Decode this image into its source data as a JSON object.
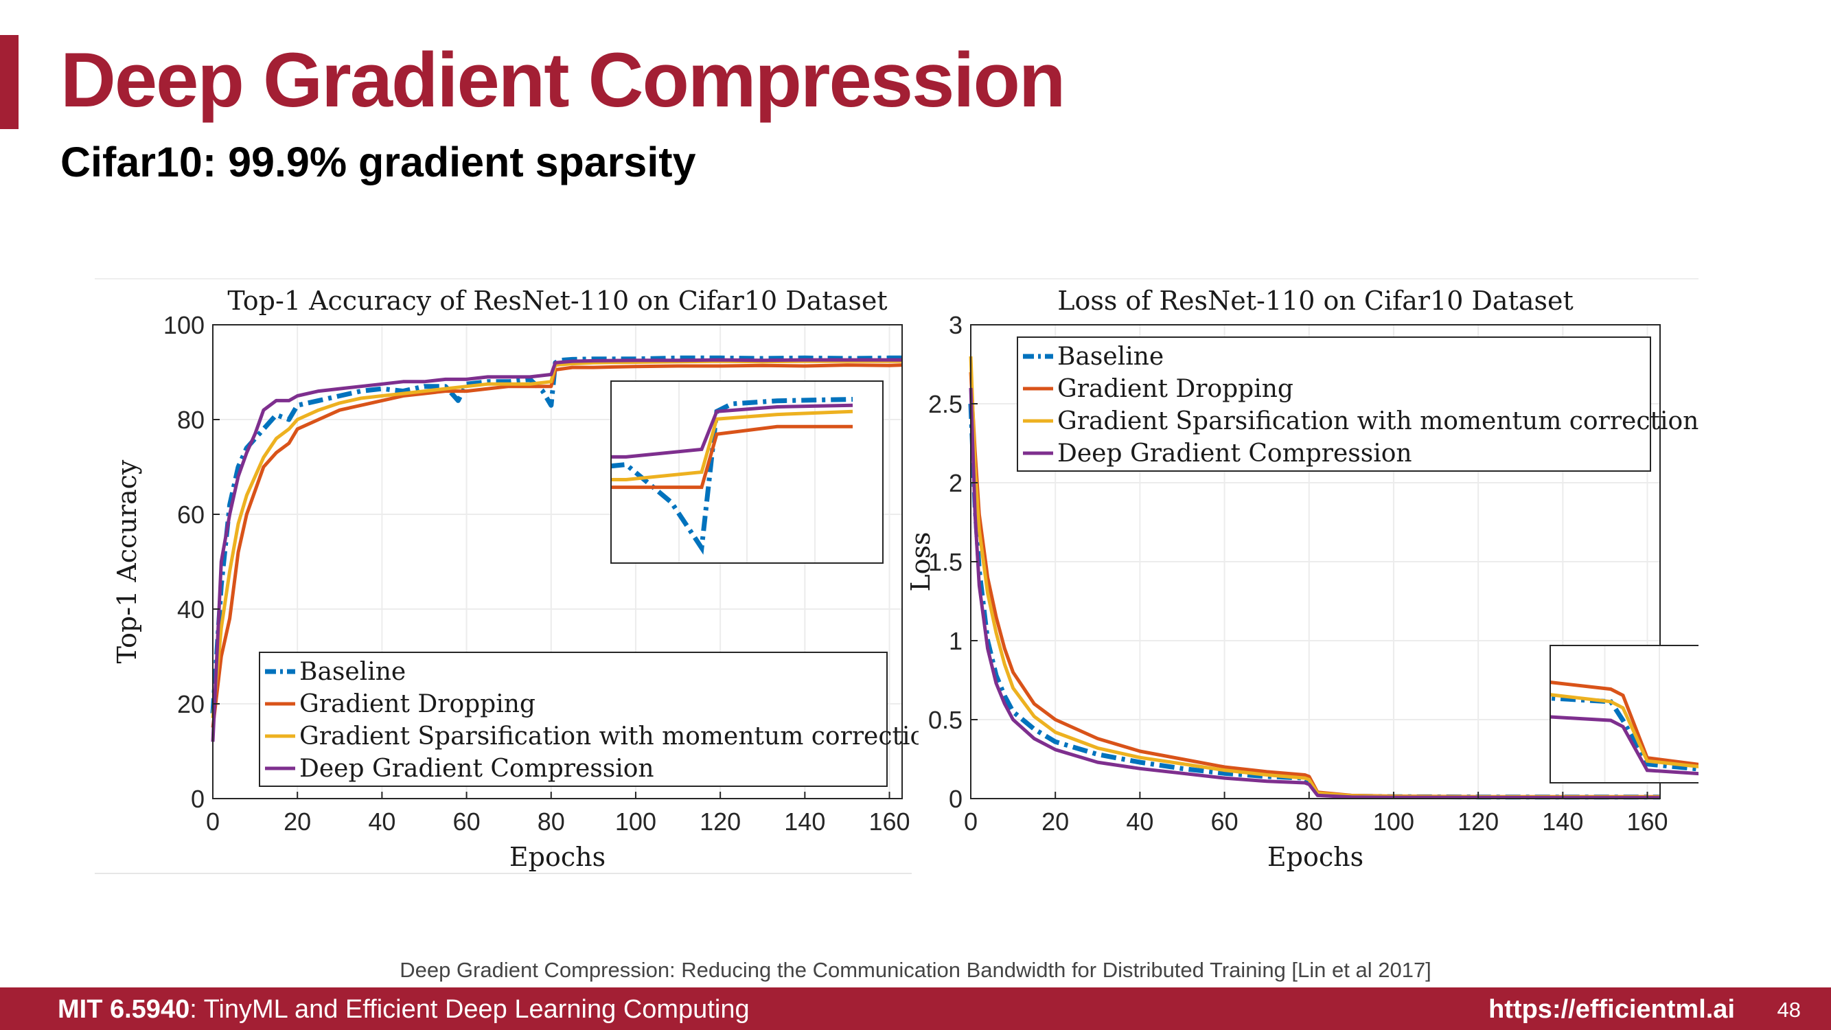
{
  "slide": {
    "title": "Deep Gradient Compression",
    "subtitle": "Cifar10: 99.9% gradient sparsity",
    "citation": "Deep Gradient Compression: Reducing the Communication Bandwidth for Distributed Training [Lin et al 2017]",
    "footer_course_code": "MIT 6.5940",
    "footer_course_name": ": TinyML and Efficient Deep Learning Computing",
    "footer_url": "https://efficientml.ai",
    "page_number": "48"
  },
  "colors": {
    "accent": "#a31f34",
    "baseline": "#0072bd",
    "gradient_dropping": "#d95319",
    "gradient_sparsification": "#edb120",
    "deep_gradient_compression": "#7e2f8e"
  },
  "chart_data": [
    {
      "type": "line",
      "title": "Top-1 Accuracy of ResNet-110 on Cifar10 Dataset",
      "xlabel": "Epochs",
      "ylabel": "Top-1 Accuracy",
      "xlim": [
        0,
        163
      ],
      "ylim": [
        0,
        100
      ],
      "xticks": [
        "0",
        "20",
        "40",
        "60",
        "80",
        "100",
        "120",
        "140",
        "160"
      ],
      "yticks": [
        "0",
        "20",
        "40",
        "60",
        "80",
        "100"
      ],
      "grid": true,
      "legend_position": "bottom-center",
      "inset": "zoom of curves around epoch 80 (upper right)",
      "series": [
        {
          "name": "Baseline",
          "style": "dash-dot",
          "x": [
            0,
            2,
            4,
            6,
            8,
            10,
            12,
            15,
            18,
            20,
            25,
            30,
            35,
            40,
            45,
            50,
            55,
            58,
            60,
            65,
            70,
            75,
            78,
            80,
            81,
            82,
            85,
            90,
            100,
            110,
            120,
            130,
            140,
            150,
            160,
            163
          ],
          "y": [
            18,
            45,
            62,
            70,
            74,
            76,
            78,
            81,
            80,
            83,
            84,
            85,
            86,
            86.5,
            86,
            87,
            87,
            84,
            87.5,
            88,
            88,
            88.5,
            86,
            83,
            92,
            92.5,
            92.7,
            92.8,
            92.8,
            93,
            93,
            92.9,
            93,
            92.9,
            93,
            93
          ]
        },
        {
          "name": "Gradient Dropping",
          "style": "solid",
          "x": [
            0,
            2,
            4,
            6,
            8,
            10,
            12,
            15,
            18,
            20,
            25,
            30,
            35,
            40,
            45,
            50,
            55,
            60,
            65,
            70,
            75,
            80,
            81,
            85,
            90,
            100,
            110,
            120,
            130,
            140,
            150,
            160,
            163
          ],
          "y": [
            15,
            30,
            38,
            52,
            60,
            65,
            70,
            73,
            75,
            78,
            80,
            82,
            83,
            84,
            85,
            85.5,
            86,
            86,
            86.5,
            87,
            87,
            87,
            90.5,
            91,
            91,
            91.2,
            91.3,
            91.3,
            91.4,
            91.3,
            91.5,
            91.4,
            91.5
          ]
        },
        {
          "name": "Gradient Sparsification with momentum correction",
          "style": "solid",
          "x": [
            0,
            2,
            4,
            6,
            8,
            10,
            12,
            15,
            18,
            20,
            25,
            30,
            35,
            40,
            45,
            50,
            55,
            60,
            65,
            70,
            75,
            80,
            81,
            85,
            90,
            100,
            110,
            120,
            130,
            140,
            150,
            160,
            163
          ],
          "y": [
            17,
            36,
            48,
            58,
            64,
            68,
            72,
            76,
            78,
            80,
            82,
            83.5,
            84.5,
            85,
            85.5,
            86,
            86.5,
            87,
            87.5,
            87.5,
            87.5,
            88,
            91.5,
            91.8,
            92,
            92.1,
            92.2,
            92.3,
            92.2,
            92.3,
            92.3,
            92.3,
            92.3
          ]
        },
        {
          "name": "Deep Gradient Compression",
          "style": "solid",
          "x": [
            0,
            2,
            4,
            6,
            8,
            10,
            12,
            15,
            18,
            20,
            25,
            30,
            35,
            40,
            45,
            50,
            55,
            60,
            65,
            70,
            75,
            80,
            81,
            85,
            90,
            100,
            110,
            120,
            130,
            140,
            150,
            160,
            163
          ],
          "y": [
            12,
            50,
            60,
            68,
            73,
            77,
            82,
            84,
            84,
            85,
            86,
            86.5,
            87,
            87.5,
            88,
            88,
            88.5,
            88.5,
            89,
            89,
            89,
            89.5,
            92,
            92.3,
            92.4,
            92.5,
            92.5,
            92.6,
            92.5,
            92.6,
            92.6,
            92.6,
            92.6
          ]
        }
      ]
    },
    {
      "type": "line",
      "title": "Loss of ResNet-110 on Cifar10 Dataset",
      "xlabel": "Epochs",
      "ylabel": "Loss",
      "xlim": [
        0,
        163
      ],
      "ylim": [
        0,
        3
      ],
      "xticks": [
        "0",
        "20",
        "40",
        "60",
        "80",
        "100",
        "120",
        "140",
        "160"
      ],
      "yticks": [
        "0",
        "0.5",
        "1",
        "1.5",
        "2",
        "2.5",
        "3"
      ],
      "grid": true,
      "legend_position": "top-right",
      "inset": "zoom of curves around epoch 80 (lower right)",
      "series": [
        {
          "name": "Baseline",
          "style": "dash-dot",
          "x": [
            0,
            1,
            2,
            4,
            6,
            8,
            10,
            15,
            20,
            30,
            40,
            50,
            60,
            70,
            79,
            80,
            82,
            90,
            100,
            120,
            140,
            160,
            163
          ],
          "y": [
            2.5,
            1.85,
            1.45,
            1.0,
            0.78,
            0.65,
            0.55,
            0.44,
            0.36,
            0.28,
            0.23,
            0.19,
            0.16,
            0.14,
            0.13,
            0.1,
            0.03,
            0.015,
            0.012,
            0.01,
            0.01,
            0.01,
            0.01
          ]
        },
        {
          "name": "Gradient Dropping",
          "style": "solid",
          "x": [
            0,
            1,
            2,
            4,
            6,
            8,
            10,
            15,
            20,
            30,
            40,
            50,
            60,
            70,
            79,
            80,
            82,
            90,
            100,
            120,
            140,
            160,
            163
          ],
          "y": [
            2.7,
            2.2,
            1.8,
            1.4,
            1.15,
            0.95,
            0.8,
            0.6,
            0.5,
            0.38,
            0.3,
            0.25,
            0.2,
            0.17,
            0.15,
            0.14,
            0.04,
            0.02,
            0.015,
            0.012,
            0.012,
            0.012,
            0.012
          ]
        },
        {
          "name": "Gradient Sparsification with momentum correction",
          "style": "solid",
          "x": [
            0,
            1,
            2,
            4,
            6,
            8,
            10,
            15,
            20,
            30,
            40,
            50,
            60,
            70,
            79,
            80,
            82,
            90,
            100,
            120,
            140,
            160,
            163
          ],
          "y": [
            2.8,
            2.1,
            1.7,
            1.3,
            1.05,
            0.85,
            0.7,
            0.52,
            0.42,
            0.32,
            0.26,
            0.22,
            0.18,
            0.15,
            0.13,
            0.12,
            0.035,
            0.018,
            0.013,
            0.011,
            0.01,
            0.01,
            0.01
          ]
        },
        {
          "name": "Deep Gradient Compression",
          "style": "solid",
          "x": [
            0,
            1,
            2,
            4,
            6,
            8,
            10,
            15,
            20,
            30,
            40,
            50,
            60,
            70,
            79,
            80,
            82,
            90,
            100,
            120,
            140,
            160,
            163
          ],
          "y": [
            2.6,
            1.8,
            1.35,
            0.95,
            0.73,
            0.6,
            0.5,
            0.38,
            0.31,
            0.23,
            0.19,
            0.16,
            0.13,
            0.11,
            0.1,
            0.09,
            0.02,
            0.01,
            0.008,
            0.007,
            0.006,
            0.006,
            0.006
          ]
        }
      ]
    }
  ]
}
